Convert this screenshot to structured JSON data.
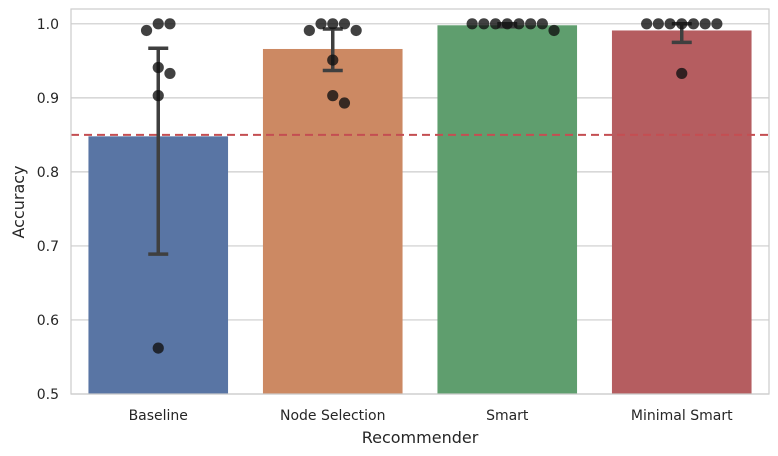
{
  "chart_data": {
    "type": "bar",
    "title": "",
    "xlabel": "Recommender",
    "ylabel": "Accuracy",
    "ylim": [
      0.5,
      1.02
    ],
    "yticks": [
      "0.5",
      "0.6",
      "0.7",
      "0.8",
      "0.9",
      "1.0"
    ],
    "grid": true,
    "categories": [
      "Baseline",
      "Node Selection",
      "Smart",
      "Minimal Smart"
    ],
    "values": [
      0.848,
      0.966,
      0.998,
      0.991
    ],
    "colors": [
      "#5975a4",
      "#cc8963",
      "#5f9e6e",
      "#b55d60"
    ],
    "error_bars": [
      {
        "low": 0.689,
        "high": 0.967
      },
      {
        "low": 0.937,
        "high": 0.993
      },
      {
        "low": 0.996,
        "high": 1.0
      },
      {
        "low": 0.975,
        "high": 1.0
      }
    ],
    "points": [
      [
        1.0,
        1.0,
        0.991,
        0.941,
        0.933,
        0.903,
        0.562
      ],
      [
        1.0,
        1.0,
        1.0,
        0.991,
        0.991,
        0.951,
        0.903,
        0.893
      ],
      [
        1.0,
        1.0,
        1.0,
        1.0,
        1.0,
        1.0,
        1.0,
        0.991
      ],
      [
        1.0,
        1.0,
        1.0,
        1.0,
        1.0,
        1.0,
        1.0,
        0.933
      ]
    ],
    "reference_line": {
      "y": 0.85,
      "color": "#c44e52",
      "style": "dashed"
    }
  }
}
